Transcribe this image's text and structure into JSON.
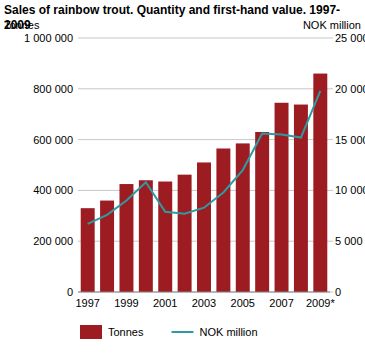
{
  "chart_data": {
    "type": "bar",
    "title": "Sales of rainbow trout. Quantity and first-hand value. 1997-2009",
    "ylabel": "Tonnes",
    "y2label": "NOK million",
    "categories": [
      "1997",
      null,
      "1999",
      null,
      "2001",
      null,
      "2003",
      null,
      "2005",
      null,
      "2007",
      null,
      "2009*"
    ],
    "series": [
      {
        "name": "Tonnes",
        "type": "bar",
        "color": "#9c1c22",
        "values": [
          330000,
          360000,
          425000,
          440000,
          435000,
          462000,
          510000,
          565000,
          585000,
          630000,
          745000,
          738000,
          860000
        ]
      },
      {
        "name": "NOK million",
        "type": "line",
        "color": "#2e9ba3",
        "axis": "y2",
        "values": [
          6700,
          7600,
          9000,
          10800,
          7900,
          7700,
          8300,
          9800,
          12000,
          15600,
          15500,
          15200,
          19800
        ]
      }
    ],
    "ylim": [
      0,
      1000000
    ],
    "yticks": [
      0,
      {
        "value": 200000,
        "label": "200 000"
      },
      {
        "value": 400000,
        "label": "400 000"
      },
      {
        "value": 600000,
        "label": "600 000"
      },
      {
        "value": 800000,
        "label": "800 000"
      },
      {
        "value": 1000000,
        "label": "1 000 000"
      }
    ],
    "y2lim": [
      0,
      25000
    ],
    "y2ticks": [
      0,
      {
        "value": 5000,
        "label": "5 000"
      },
      {
        "value": 10000,
        "label": "10 000"
      },
      {
        "value": 15000,
        "label": "15 000"
      },
      {
        "value": 20000,
        "label": "20 000"
      },
      {
        "value": 25000,
        "label": "25 000"
      }
    ],
    "grid": true,
    "legend": "bottom"
  }
}
